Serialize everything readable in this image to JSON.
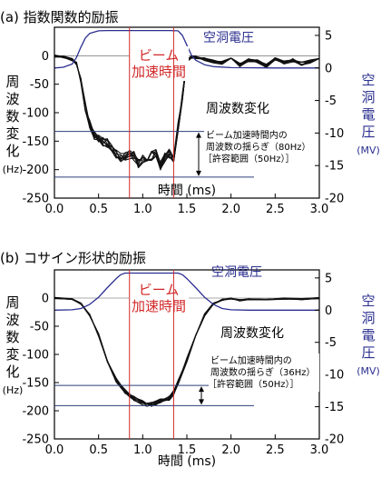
{
  "colors": {
    "axis": "#000000",
    "frequency_traces": "#111111",
    "cavity_voltage": "#2b2f8f",
    "beam_window": "#d22828",
    "band": "#2b3f7a",
    "blue_text": "#2b2f8f",
    "red_text": "#d22828"
  },
  "chart_data": [
    {
      "type": "line",
      "panel_label": "(a) 指数関数的励振",
      "xlabel": "時間 (ms)",
      "ylabel_left": [
        "周",
        "波",
        "数",
        "変",
        "化",
        "(Hz)"
      ],
      "ylabel_right": [
        "空",
        "洞",
        "電",
        "圧",
        "(MV)"
      ],
      "xlim": [
        0,
        3.0
      ],
      "ylim_left": [
        -250,
        50
      ],
      "ylim_right": [
        -20,
        6.25
      ],
      "x_ticks": [
        "0.0",
        "0.5",
        "1.0",
        "1.5",
        "2.0",
        "2.5",
        "3.0"
      ],
      "y_ticks_left": [
        "0",
        "-50",
        "-100",
        "-150",
        "-200",
        "-250"
      ],
      "y_ticks_right": [
        "5",
        "0",
        "-5",
        "-10",
        "-15",
        "-20"
      ],
      "beam_window": {
        "label": [
          "ビーム",
          "加速時間"
        ],
        "start": 0.85,
        "end": 1.35
      },
      "band": {
        "upper": -133,
        "lower": -213,
        "annotation": [
          "ビーム加速時間内の",
          "周波数の揺らぎ（80Hz）",
          "［許容範囲（50Hz）］"
        ]
      },
      "series": [
        {
          "name": "空洞電圧",
          "axis": "right",
          "x": [
            0,
            0.1,
            0.2,
            0.25,
            0.3,
            0.35,
            0.4,
            0.5,
            0.6,
            1.3,
            1.4,
            1.45,
            1.5,
            1.55,
            1.6,
            1.7,
            1.8,
            2.0,
            2.5,
            3.0
          ],
          "values": [
            0,
            0.1,
            0.6,
            1.6,
            3.2,
            4.6,
            5.3,
            5.7,
            5.75,
            5.75,
            5.7,
            5.0,
            3.5,
            2.0,
            1.2,
            0.5,
            0.2,
            0.05,
            0,
            0
          ]
        },
        {
          "name": "周波数変化",
          "axis": "left",
          "traces": 8,
          "x": [
            0,
            0.1,
            0.2,
            0.25,
            0.3,
            0.35,
            0.4,
            0.45,
            0.5,
            0.55,
            0.6,
            0.65,
            0.7,
            0.75,
            0.8,
            0.85,
            0.9,
            0.95,
            1.0,
            1.05,
            1.1,
            1.15,
            1.2,
            1.25,
            1.3,
            1.35,
            1.4,
            1.45,
            1.5,
            1.55,
            1.6,
            1.7,
            1.8,
            1.9,
            2.0,
            2.1,
            2.2,
            2.3,
            2.4,
            2.5,
            2.6,
            2.7,
            2.8,
            2.9,
            3.0
          ],
          "values": [
            0,
            -2,
            -6,
            -14,
            -45,
            -90,
            -120,
            -140,
            -146,
            -150,
            -154,
            -160,
            -172,
            -178,
            -178,
            -174,
            -176,
            -190,
            -180,
            -190,
            -176,
            -170,
            -192,
            -178,
            -172,
            -180,
            -125,
            -72,
            -8,
            -2,
            -3,
            -6,
            -10,
            -12,
            -4,
            -16,
            -8,
            -10,
            -18,
            -6,
            -12,
            -8,
            -14,
            -10,
            -6
          ]
        }
      ]
    },
    {
      "type": "line",
      "panel_label": "(b) コサイン形状的励振",
      "xlabel": "時間 (ms)",
      "ylabel_left": [
        "周",
        "波",
        "数",
        "変",
        "化",
        "(Hz)"
      ],
      "ylabel_right": [
        "空",
        "洞",
        "電",
        "圧",
        "(MV)"
      ],
      "xlim": [
        0,
        3.0
      ],
      "ylim_left": [
        -250,
        50
      ],
      "ylim_right": [
        -20,
        6.25
      ],
      "x_ticks": [
        "0.0",
        "0.5",
        "1.0",
        "1.5",
        "2.0",
        "2.5",
        "3.0"
      ],
      "y_ticks_left": [
        "0",
        "-50",
        "-100",
        "-150",
        "-200",
        "-250"
      ],
      "y_ticks_right": [
        "5",
        "0",
        "-5",
        "-10",
        "-15",
        "-20"
      ],
      "beam_window": {
        "label": [
          "ビーム",
          "加速時間"
        ],
        "start": 0.85,
        "end": 1.35
      },
      "band": {
        "upper": -155,
        "lower": -191,
        "annotation": [
          "ビーム加速時間内の",
          "周波数の揺らぎ（36Hz）",
          "［許容範囲（50Hz）］"
        ]
      },
      "series": [
        {
          "name": "空洞電圧",
          "axis": "right",
          "x": [
            0,
            0.2,
            0.3,
            0.4,
            0.5,
            0.6,
            0.7,
            0.75,
            0.8,
            1.4,
            1.45,
            1.5,
            1.6,
            1.7,
            1.8,
            1.9,
            2.0,
            2.2,
            2.5,
            3.0
          ],
          "values": [
            0,
            0.05,
            0.25,
            0.9,
            2.0,
            3.5,
            4.9,
            5.5,
            5.75,
            5.75,
            5.5,
            4.9,
            3.5,
            2.0,
            0.9,
            0.25,
            0.05,
            0,
            0,
            0
          ]
        },
        {
          "name": "周波数変化",
          "axis": "left",
          "traces": 8,
          "x": [
            0,
            0.2,
            0.3,
            0.4,
            0.5,
            0.6,
            0.7,
            0.8,
            0.85,
            0.9,
            1.0,
            1.05,
            1.1,
            1.15,
            1.2,
            1.3,
            1.35,
            1.4,
            1.5,
            1.6,
            1.7,
            1.8,
            1.9,
            2.0,
            2.1,
            2.2,
            2.4,
            2.6,
            2.8,
            3.0
          ],
          "values": [
            0,
            -2,
            -10,
            -30,
            -65,
            -110,
            -145,
            -165,
            -172,
            -178,
            -186,
            -188,
            -189,
            -186,
            -182,
            -178,
            -168,
            -150,
            -110,
            -65,
            -30,
            -10,
            -3,
            -1,
            -4,
            -2,
            -3,
            -1,
            -2,
            0
          ]
        }
      ]
    }
  ]
}
